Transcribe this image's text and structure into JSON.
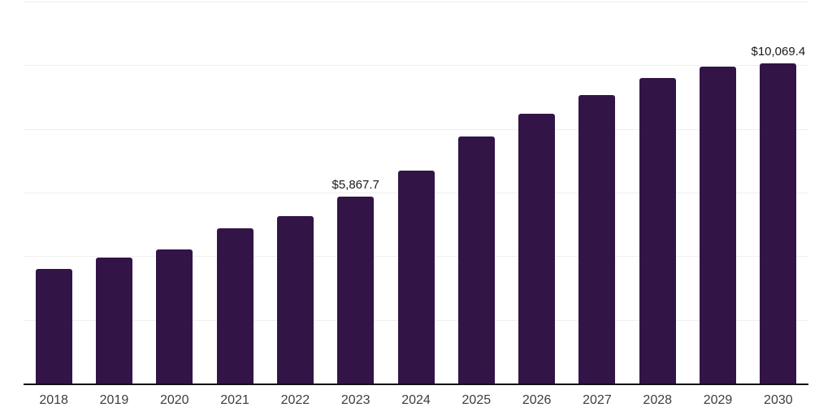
{
  "chart_data": {
    "type": "bar",
    "title": "",
    "xlabel": "",
    "ylabel": "",
    "categories": [
      "2018",
      "2019",
      "2020",
      "2021",
      "2022",
      "2023",
      "2024",
      "2025",
      "2026",
      "2027",
      "2028",
      "2029",
      "2030"
    ],
    "values": [
      3600,
      3955,
      4210,
      4875,
      5260,
      5867.7,
      6690,
      7760,
      8475,
      9065,
      9600,
      9955,
      10069.4
    ],
    "data_labels": [
      null,
      null,
      null,
      null,
      null,
      "$5,867.7",
      null,
      null,
      null,
      null,
      null,
      null,
      "$10,069.4"
    ],
    "ylim": [
      0,
      12000
    ],
    "grid_interval": 2000,
    "grid_on": true,
    "legend_position": "none",
    "colors": {
      "bar": "#321447",
      "axis_line": "#111111",
      "gridline": "#efefef",
      "data_label_text": "#1a1a1a",
      "tick_label_text": "#3d3d3d",
      "background": "#ffffff"
    }
  }
}
